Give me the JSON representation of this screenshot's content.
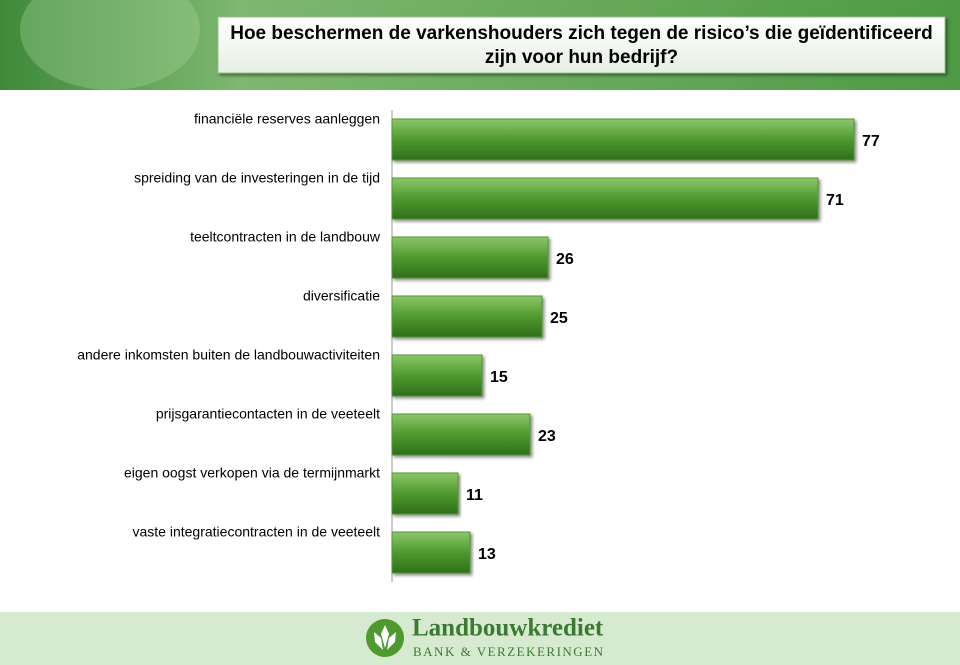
{
  "chart_data": {
    "type": "barh",
    "title": "Hoe beschermen de varkenshouders zich tegen de risico’s die geïdentificeerd zijn voor hun bedrijf?",
    "categories": [
      "financiële reserves aanleggen",
      "spreiding van de investeringen in de tijd",
      "teeltcontracten in de landbouw",
      "diversificatie",
      "andere inkomsten buiten de landbouwactiviteiten",
      "prijsgarantiecontacten in de veeteelt",
      "eigen oogst verkopen via de termijnmarkt",
      "vaste integratiecontracten in de veeteelt"
    ],
    "values": [
      77,
      71,
      26,
      25,
      15,
      23,
      11,
      13
    ],
    "color": "#4f9a2e",
    "xlim": [
      0,
      80
    ]
  },
  "logo": {
    "name": "Landbouwkrediet",
    "tagline": "BANK & VERZEKERINGEN"
  }
}
